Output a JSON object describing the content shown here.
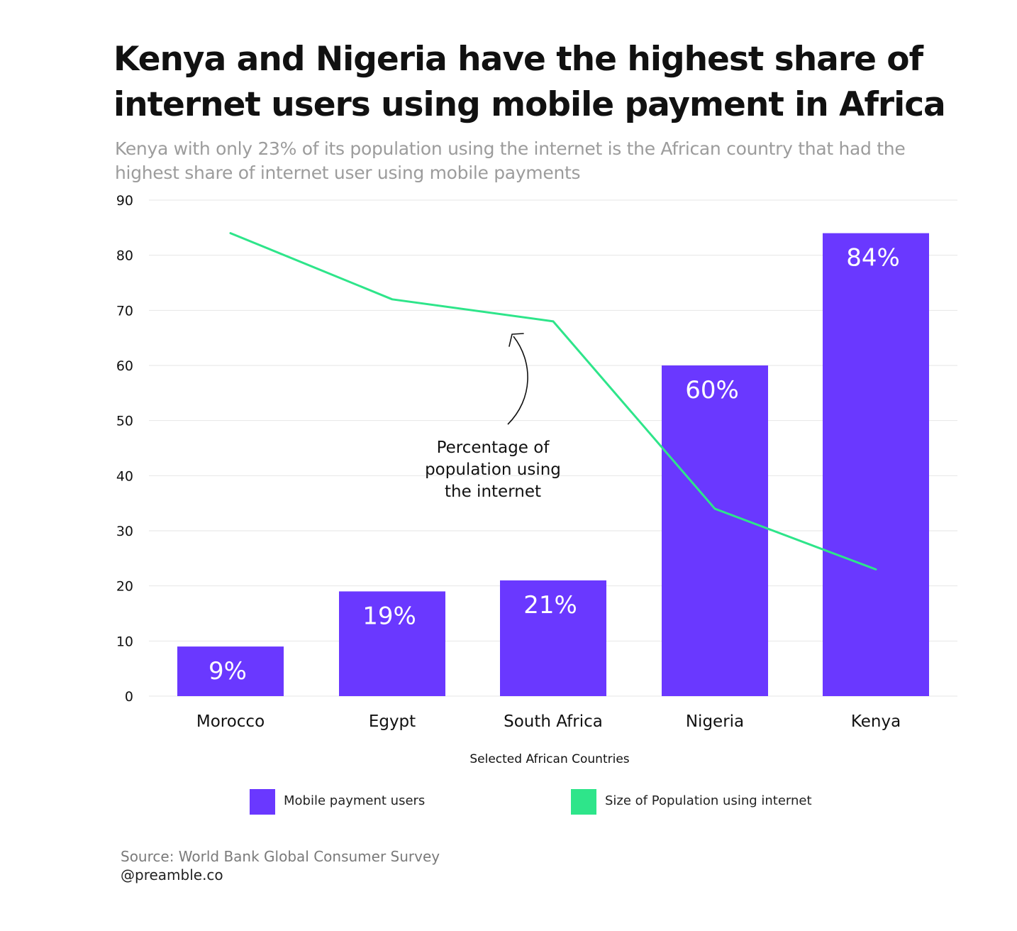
{
  "title": "Kenya and Nigeria have the highest share of internet users using mobile payment in Africa",
  "subtitle": "Kenya with only 23% of its population using the internet is the African country that had the highest share of internet user using mobile payments",
  "colors": {
    "bar": "#6a38ff",
    "line": "#2ee58a",
    "grid": "#e6e6e6",
    "text": "#111111"
  },
  "chart_data": {
    "type": "bar",
    "categories": [
      "Morocco",
      "Egypt",
      "South Africa",
      "Nigeria",
      "Kenya"
    ],
    "xlabel": "Selected African Countries",
    "ylabel": "",
    "ylim": [
      0,
      90
    ],
    "yticks": [
      0,
      10,
      20,
      30,
      40,
      50,
      60,
      70,
      80,
      90
    ],
    "grid": true,
    "legend_position": "bottom",
    "series": [
      {
        "name": "Mobile payment users",
        "type": "bar",
        "values": [
          9,
          19,
          21,
          60,
          84
        ],
        "labels": [
          "9%",
          "19%",
          "21%",
          "60%",
          "84%"
        ],
        "color": "#6a38ff"
      },
      {
        "name": "Size of Population using internet",
        "type": "line",
        "values": [
          84,
          72,
          68,
          34,
          23
        ],
        "color": "#2ee58a"
      }
    ],
    "annotations": [
      {
        "text": "Percentage of population using the internet",
        "target_series": "Size of Population using internet"
      }
    ]
  },
  "annotation_text": "Percentage of population using the internet",
  "legend": {
    "bar_label": "Mobile payment users",
    "line_label": "Size of Population using internet"
  },
  "source": "Source: World Bank Global Consumer Survey",
  "handle": "@preamble.co"
}
